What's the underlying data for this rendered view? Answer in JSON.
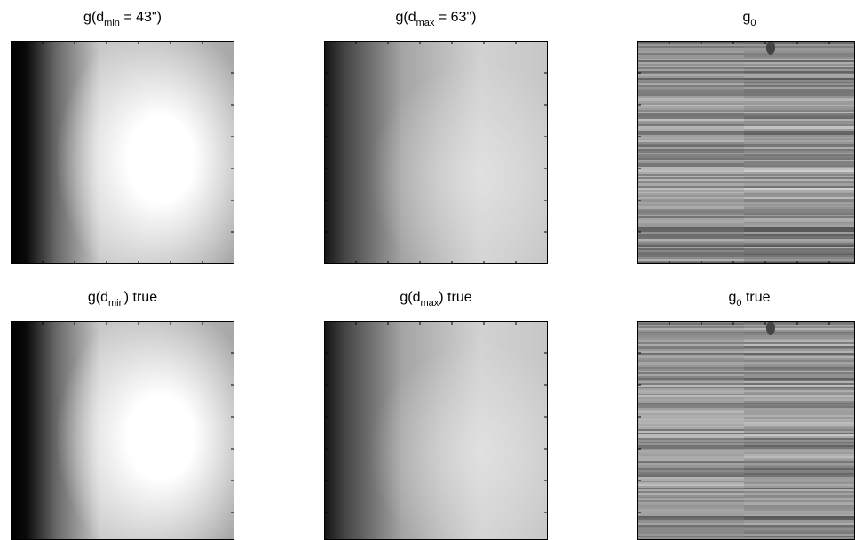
{
  "panels": [
    {
      "title": [
        {
          "text": "g(d"
        },
        {
          "text": "min",
          "sub": true
        },
        {
          "text": " = 43\")"
        }
      ]
    },
    {
      "title": [
        {
          "text": "g(d"
        },
        {
          "text": "max",
          "sub": true
        },
        {
          "text": " = 63\")"
        }
      ]
    },
    {
      "title": [
        {
          "text": "g"
        },
        {
          "text": "0",
          "sub": true
        }
      ]
    },
    {
      "title": [
        {
          "text": "g(d"
        },
        {
          "text": "min",
          "sub": true
        },
        {
          "text": ") true"
        }
      ]
    },
    {
      "title": [
        {
          "text": "g(d"
        },
        {
          "text": "max",
          "sub": true
        },
        {
          "text": ") true"
        }
      ]
    },
    {
      "title": [
        {
          "text": "g"
        },
        {
          "text": "0",
          "sub": true
        },
        {
          "text": " true"
        }
      ]
    }
  ]
}
